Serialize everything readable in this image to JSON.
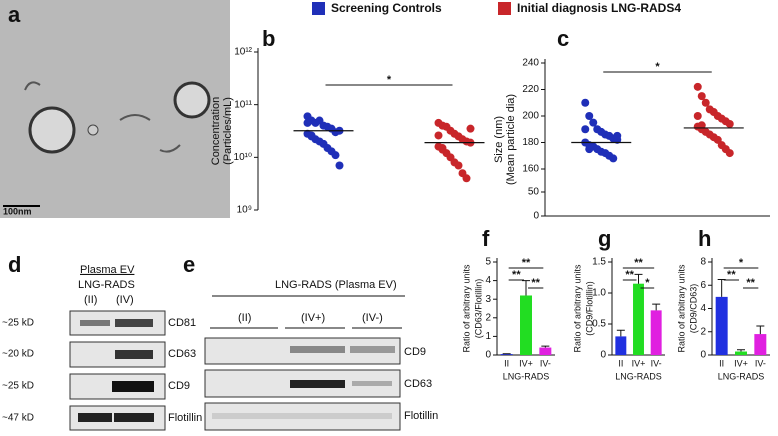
{
  "panels": {
    "a": "a",
    "d": "d",
    "e": "e"
  },
  "micrograph": {
    "scale": "100nm"
  },
  "blot_d": {
    "header1": "Plasma EV",
    "header2": "LNG-RADS",
    "lanes": [
      "(II)",
      "(IV)"
    ],
    "kd": [
      "~25 kD",
      "~20 kD",
      "~25 kD",
      "~47 kD"
    ],
    "proteins": [
      "CD81",
      "CD63",
      "CD9",
      "Flotillin"
    ]
  },
  "blot_e": {
    "header": "LNG-RADS (Plasma EV)",
    "groups": [
      "(II)",
      "(IV+)",
      "(IV-)"
    ],
    "proteins": [
      "CD9",
      "CD63",
      "Flotillin"
    ]
  },
  "chart_data": [
    {
      "type": "scatter",
      "label": "b",
      "ylabel": [
        "Concentration",
        "(Particles/mL)"
      ],
      "yscale": "log",
      "ylim": [
        1000000000,
        1000000000000
      ],
      "yticks": [
        {
          "value": 1000000000,
          "label": "10⁹"
        },
        {
          "value": 10000000000,
          "label": "10¹⁰"
        },
        {
          "value": 100000000000,
          "label": "10¹¹"
        },
        {
          "value": 1000000000000,
          "label": "10¹²"
        }
      ],
      "series": [
        {
          "name": "Screening Controls",
          "color": "#1f2fb8",
          "mean": 32000000000,
          "values": [
            60000000000,
            50000000000,
            45000000000,
            50000000000,
            40000000000,
            38000000000,
            35000000000,
            30000000000,
            32000000000,
            28000000000,
            25000000000,
            22000000000,
            20000000000,
            18000000000,
            15000000000,
            13000000000,
            11000000000,
            7000000000,
            45000000000,
            26000000000
          ]
        },
        {
          "name": "Initial diagnosis LNG-RADS4",
          "color": "#c8262a",
          "mean": 19000000000,
          "values": [
            45000000000,
            40000000000,
            38000000000,
            32000000000,
            28000000000,
            25000000000,
            22000000000,
            20000000000,
            19000000000,
            16000000000,
            14000000000,
            12000000000,
            10000000000,
            8000000000,
            7000000000,
            5000000000,
            4000000000,
            35000000000,
            26000000000,
            15000000000
          ]
        }
      ],
      "comparisons": [
        {
          "pair": [
            0,
            1
          ],
          "label": "*"
        }
      ]
    },
    {
      "type": "scatter",
      "label": "c",
      "ylabel": [
        "Size (nm)",
        "(Mean particle dia)"
      ],
      "ylim": [
        0,
        240
      ],
      "ybreak": [
        50,
        160
      ],
      "yticks": [
        0,
        50,
        160,
        180,
        200,
        220,
        240
      ],
      "series": [
        {
          "name": "Screening Controls",
          "color": "#1f2fb8",
          "mean": 180,
          "values": [
            210,
            200,
            195,
            190,
            188,
            186,
            185,
            183,
            182,
            180,
            178,
            177,
            175,
            173,
            172,
            170,
            168,
            185,
            190,
            175
          ]
        },
        {
          "name": "Initial diagnosis LNG-RADS4",
          "color": "#c8262a",
          "mean": 191,
          "values": [
            222,
            215,
            210,
            205,
            203,
            200,
            198,
            196,
            194,
            192,
            190,
            188,
            186,
            184,
            182,
            178,
            175,
            172,
            200,
            193
          ]
        }
      ],
      "comparisons": [
        {
          "pair": [
            0,
            1
          ],
          "label": "*"
        }
      ]
    },
    {
      "type": "bar",
      "label": "f",
      "ylabel": [
        "Ratio of arbitrary units",
        "(CD63/Flotillin)"
      ],
      "xlabel": "LNG-RADS",
      "categories": [
        "II",
        "IV+",
        "IV-"
      ],
      "values": [
        0.05,
        3.2,
        0.4
      ],
      "errors": [
        0.02,
        0.8,
        0.08
      ],
      "colors": [
        "#2030e0",
        "#22dd22",
        "#e020e0"
      ],
      "ylim": [
        0,
        5
      ],
      "yticks": [
        0,
        1,
        2,
        3,
        4,
        5
      ],
      "comparisons": [
        {
          "pair": [
            0,
            2
          ],
          "label": "**"
        },
        {
          "pair": [
            0,
            1
          ],
          "label": "**"
        },
        {
          "pair": [
            1,
            2
          ],
          "label": "**"
        }
      ]
    },
    {
      "type": "bar",
      "label": "g",
      "ylabel": [
        "Ratio of arbitrary units",
        "(CD9/Flotillin)"
      ],
      "xlabel": "LNG-RADS",
      "categories": [
        "II",
        "IV+",
        "IV-"
      ],
      "values": [
        0.3,
        1.15,
        0.72
      ],
      "errors": [
        0.1,
        0.15,
        0.1
      ],
      "colors": [
        "#2030e0",
        "#22dd22",
        "#e020e0"
      ],
      "ylim": [
        0,
        1.5
      ],
      "yticks": [
        0,
        0.5,
        {
          "value": 1,
          "label": "1.0"
        },
        1.5
      ],
      "comparisons": [
        {
          "pair": [
            0,
            2
          ],
          "label": "**"
        },
        {
          "pair": [
            0,
            1
          ],
          "label": "**"
        },
        {
          "pair": [
            1,
            2
          ],
          "label": "*"
        }
      ]
    },
    {
      "type": "bar",
      "label": "h",
      "ylabel": [
        "Ratio of arbitrary units",
        "(CD9/CD63)"
      ],
      "xlabel": "LNG-RADS",
      "categories": [
        "II",
        "IV+",
        "IV-"
      ],
      "values": [
        5.0,
        0.3,
        1.8
      ],
      "errors": [
        1.5,
        0.15,
        0.7
      ],
      "colors": [
        "#2030e0",
        "#22dd22",
        "#e020e0"
      ],
      "ylim": [
        0,
        8
      ],
      "yticks": [
        0,
        2,
        4,
        6,
        8
      ],
      "comparisons": [
        {
          "pair": [
            0,
            2
          ],
          "label": "*"
        },
        {
          "pair": [
            0,
            1
          ],
          "label": "**"
        },
        {
          "pair": [
            1,
            2
          ],
          "label": "**"
        }
      ]
    }
  ]
}
